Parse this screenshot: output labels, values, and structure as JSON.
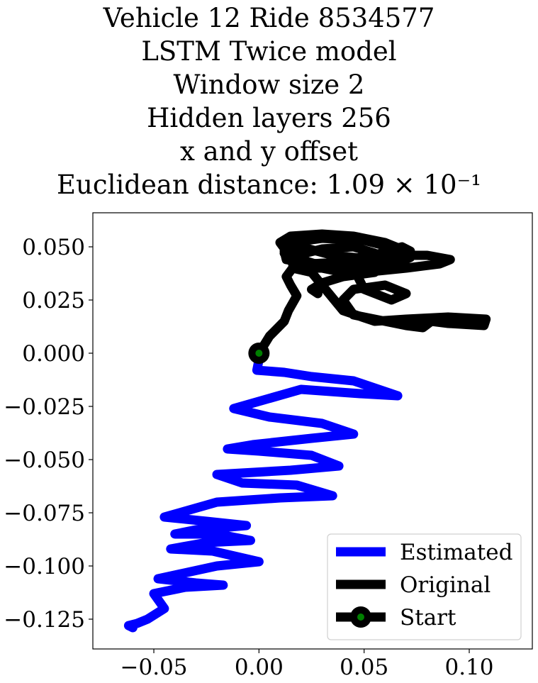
{
  "chart_data": {
    "type": "line",
    "title_lines": [
      "Vehicle 12 Ride 8534577",
      "LSTM Twice model",
      "Window size 2",
      "Hidden layers 256",
      "x and y offset",
      "Euclidean distance: 1.09 × 10⁻¹"
    ],
    "xlabel": "",
    "ylabel": "",
    "xlim": [
      -0.079,
      0.13
    ],
    "ylim": [
      -0.139,
      0.066
    ],
    "xticks": [
      -0.05,
      0.0,
      0.05,
      0.1
    ],
    "xtick_labels": [
      "−0.05",
      "0.00",
      "0.05",
      "0.10"
    ],
    "yticks": [
      0.05,
      0.025,
      0.0,
      -0.025,
      -0.05,
      -0.075,
      -0.1,
      -0.125
    ],
    "ytick_labels": [
      "0.050",
      "0.025",
      "0.000",
      "−0.025",
      "−0.050",
      "−0.075",
      "−0.100",
      "−0.125"
    ],
    "grid": false,
    "legend_position": "lower right",
    "series": [
      {
        "name": "Estimated",
        "color": "#0000ff",
        "x": [
          0.0,
          -0.001,
          0.012,
          0.025,
          0.045,
          0.066,
          0.048,
          0.02,
          -0.012,
          0.005,
          0.03,
          0.045,
          0.025,
          -0.003,
          -0.015,
          0.0,
          0.025,
          0.038,
          0.015,
          -0.02,
          -0.008,
          0.018,
          0.035,
          0.01,
          -0.02,
          -0.045,
          -0.025,
          -0.006,
          -0.03,
          -0.04,
          -0.02,
          -0.004,
          -0.025,
          -0.042,
          -0.022,
          0.0,
          -0.02,
          -0.048,
          -0.03,
          -0.017,
          -0.035,
          -0.05,
          -0.045,
          -0.053,
          -0.058,
          -0.062,
          -0.06
        ],
        "y": [
          -0.003,
          -0.008,
          -0.009,
          -0.011,
          -0.013,
          -0.02,
          -0.019,
          -0.017,
          -0.026,
          -0.03,
          -0.033,
          -0.038,
          -0.04,
          -0.043,
          -0.045,
          -0.046,
          -0.048,
          -0.053,
          -0.055,
          -0.057,
          -0.061,
          -0.062,
          -0.067,
          -0.068,
          -0.07,
          -0.077,
          -0.079,
          -0.081,
          -0.083,
          -0.085,
          -0.085,
          -0.088,
          -0.089,
          -0.092,
          -0.093,
          -0.098,
          -0.1,
          -0.106,
          -0.108,
          -0.109,
          -0.11,
          -0.113,
          -0.12,
          -0.125,
          -0.127,
          -0.128,
          -0.129
        ]
      },
      {
        "name": "Original",
        "color": "#000000",
        "x": [
          0.0,
          0.005,
          0.012,
          0.014,
          0.018,
          0.015,
          0.013,
          0.016,
          0.025,
          0.04,
          0.055,
          0.07,
          0.09,
          0.108,
          0.107,
          0.09,
          0.082,
          0.078,
          0.07,
          0.055,
          0.045,
          0.04,
          0.045,
          0.06,
          0.07,
          0.063,
          0.05,
          0.045,
          0.048,
          0.06,
          0.08,
          0.091,
          0.086,
          0.07,
          0.05,
          0.035,
          0.02,
          0.012,
          0.015,
          0.03,
          0.05,
          0.062,
          0.072,
          0.065,
          0.045,
          0.03,
          0.02,
          0.013,
          0.01,
          0.015,
          0.03,
          0.045,
          0.06,
          0.07,
          0.068,
          0.055,
          0.035,
          0.02,
          0.012,
          0.013,
          0.025,
          0.042,
          0.058,
          0.068,
          0.072,
          0.065,
          0.05,
          0.035,
          0.024,
          0.016,
          0.018,
          0.03,
          0.045,
          0.055,
          0.06,
          0.055,
          0.04,
          0.03,
          0.025,
          0.028
        ],
        "y": [
          0.0,
          0.008,
          0.015,
          0.02,
          0.027,
          0.032,
          0.036,
          0.04,
          0.038,
          0.02,
          0.015,
          0.016,
          0.017,
          0.016,
          0.013,
          0.014,
          0.015,
          0.012,
          0.013,
          0.016,
          0.018,
          0.025,
          0.03,
          0.032,
          0.028,
          0.025,
          0.03,
          0.04,
          0.045,
          0.046,
          0.046,
          0.044,
          0.042,
          0.04,
          0.038,
          0.039,
          0.042,
          0.047,
          0.052,
          0.054,
          0.053,
          0.05,
          0.045,
          0.042,
          0.04,
          0.041,
          0.044,
          0.048,
          0.052,
          0.055,
          0.056,
          0.055,
          0.052,
          0.048,
          0.045,
          0.044,
          0.046,
          0.05,
          0.048,
          0.044,
          0.042,
          0.043,
          0.047,
          0.05,
          0.048,
          0.044,
          0.042,
          0.04,
          0.04,
          0.042,
          0.046,
          0.049,
          0.05,
          0.047,
          0.043,
          0.038,
          0.036,
          0.033,
          0.03,
          0.028
        ]
      },
      {
        "name": "Start",
        "color": "#000000",
        "marker_color": "#008000",
        "x": [
          0.0
        ],
        "y": [
          0.0
        ]
      }
    ]
  }
}
